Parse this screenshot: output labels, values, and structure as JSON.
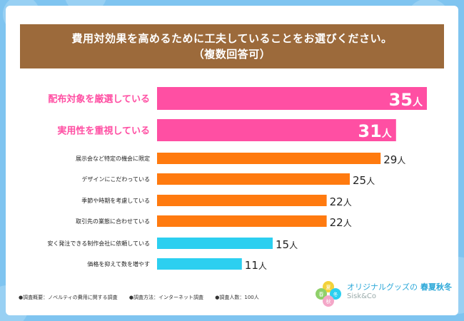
{
  "title": {
    "line1": "費用対効果を高めるために工夫していることをお選びください。",
    "line2": "（複数回答可）"
  },
  "colors": {
    "pink": "#ff4fa3",
    "orange": "#ff7a0f",
    "blue": "#2ccff0",
    "title_bg": "#9c6a3b",
    "page_bg": "#7fc4f0"
  },
  "chart_data": {
    "type": "bar",
    "orientation": "horizontal",
    "unit": "人",
    "categories": [
      "配布対象を厳選している",
      "実用性を重視している",
      "展示会など特定の機会に限定",
      "デザインにこだわっている",
      "季節や時期を考慮している",
      "取引先の業態に合わせている",
      "安く発注できる制作会社に依頼している",
      "価格を抑えて数を増やす"
    ],
    "values": [
      35,
      31,
      29,
      25,
      22,
      22,
      15,
      11
    ],
    "value_labels": [
      "35人",
      "31人",
      "29人",
      "25人",
      "22人",
      "22人",
      "15人",
      "11人"
    ],
    "bar_colors": [
      "pink",
      "pink",
      "orange",
      "orange",
      "orange",
      "orange",
      "blue",
      "blue"
    ],
    "xlim": [
      0,
      35
    ]
  },
  "footer": {
    "item1": "●調査概要：ノベルティの費用に関する調査",
    "item2": "●調査方法：インターネット調査",
    "item3": "●調査人数：100人"
  },
  "brand": {
    "name": "オリジナルグッズの",
    "seasons": "春夏秋冬",
    "sub": "Sisk&Co",
    "logo_chars": [
      "春",
      "夏",
      "秋",
      "冬"
    ]
  }
}
